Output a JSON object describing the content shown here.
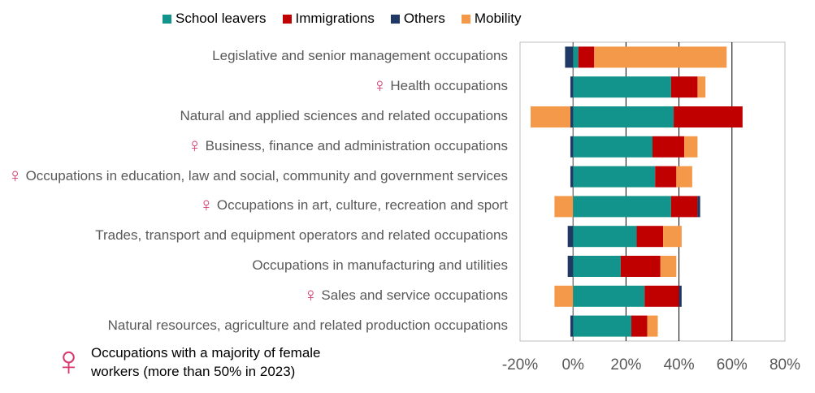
{
  "chart_data": {
    "type": "bar",
    "orientation": "horizontal",
    "stacked": true,
    "categories": [
      "Legislative and senior management occupations",
      "Health occupations",
      "Natural and applied sciences and related occupations",
      "Business, finance and administration occupations",
      "Occupations in education, law and social, community and government services",
      "Occupations in art, culture, recreation and sport",
      "Trades, transport and equipment operators and related occupations",
      "Occupations in manufacturing and utilities",
      "Sales and service occupations",
      "Natural resources, agriculture and related production occupations"
    ],
    "female_majority": [
      false,
      true,
      false,
      true,
      true,
      true,
      false,
      false,
      true,
      false
    ],
    "series": [
      {
        "name": "School leavers",
        "color": "#12948d",
        "values": [
          2,
          37,
          38,
          30,
          31,
          37,
          24,
          18,
          27,
          22
        ]
      },
      {
        "name": "Immigrations",
        "color": "#c00000",
        "values": [
          6,
          10,
          26,
          12,
          8,
          10,
          10,
          15,
          13,
          6
        ]
      },
      {
        "name": "Others",
        "color": "#1f3864",
        "values": [
          -3,
          -1,
          -1,
          -1,
          -1,
          1,
          -2,
          -2,
          1,
          -1
        ]
      },
      {
        "name": "Mobility",
        "color": "#f4984a",
        "values": [
          50,
          3,
          -15,
          5,
          6,
          -7,
          7,
          6,
          -7,
          4
        ]
      }
    ],
    "xlim": [
      -20,
      80
    ],
    "xticks": [
      -20,
      0,
      20,
      40,
      60,
      80
    ],
    "xtick_labels": [
      "-20%",
      "0%",
      "20%",
      "40%",
      "60%",
      "80%"
    ],
    "title": "",
    "xlabel": "",
    "ylabel": "",
    "legend_position": "top",
    "gridlines": "vertical"
  },
  "female_symbol": "♀",
  "note": {
    "symbol": "♀",
    "text": "Occupations with a majority of female workers (more than 50% in 2023)"
  }
}
